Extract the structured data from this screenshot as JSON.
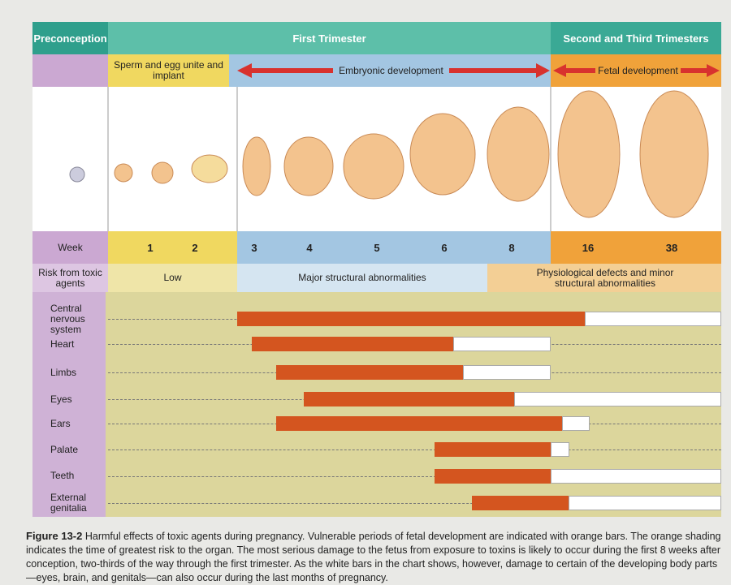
{
  "header": {
    "preconception": "Preconception",
    "first_trimester": "First Trimester",
    "later_trimesters": "Second and Third Trimesters"
  },
  "stages": {
    "implant": "Sperm and egg unite and implant",
    "embryonic": "Embryonic development",
    "fetal": "Fetal development"
  },
  "weeks": {
    "label": "Week",
    "values": [
      "1",
      "2",
      "3",
      "4",
      "5",
      "6",
      "8",
      "16",
      "38"
    ]
  },
  "risk": {
    "label": "Risk from toxic agents",
    "low": "Low",
    "major": "Major structural abnormalities",
    "minor": "Physiological defects and minor structural abnormalities"
  },
  "organs": [
    "Central nervous system",
    "Heart",
    "Limbs",
    "Eyes",
    "Ears",
    "Palate",
    "Teeth",
    "External genitalia"
  ],
  "caption": {
    "figure": "Figure 13-2",
    "text": "Harmful effects of toxic agents during pregnancy. Vulnerable periods of fetal development are indicated with orange bars. The orange shading indicates the time of greatest risk to the organ. The most serious damage to the fetus from exposure to toxins is likely to occur during the first 8 weeks after conception, two-thirds of the way through the first trimester. As the white bars in the chart shows, however, damage to certain of the developing body parts—eyes, brain, and genitals—can also occur during the last months of pregnancy."
  }
}
